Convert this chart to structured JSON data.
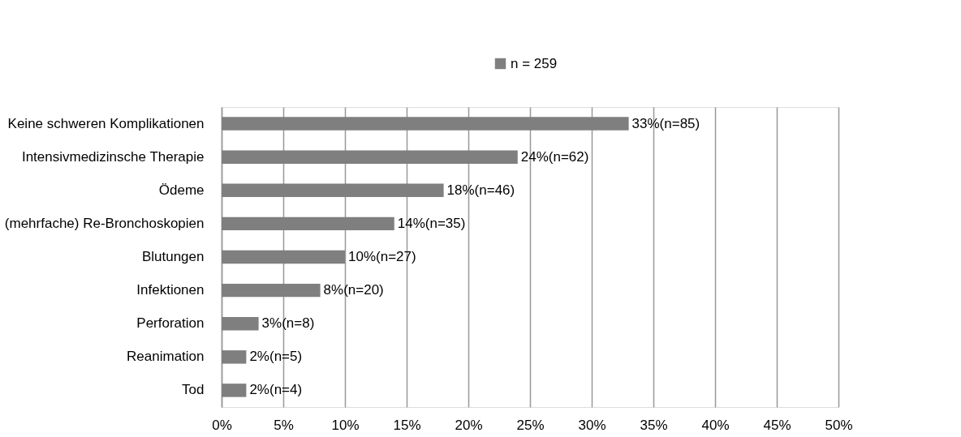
{
  "chart_data": {
    "type": "bar",
    "orientation": "horizontal",
    "categories": [
      "Keine schweren Komplikationen",
      "Intensivmedizinsche Therapie",
      "Ödeme",
      "(mehrfache) Re-Bronchoskopien",
      "Blutungen",
      "Infektionen",
      "Perforation",
      "Reanimation",
      "Tod"
    ],
    "series": [
      {
        "name": "n = 259",
        "color": "#7f7f7f",
        "values": [
          33,
          24,
          18,
          14,
          10,
          8,
          3,
          2,
          2
        ],
        "value_labels": [
          "33%(n=85)",
          "24%(n=62)",
          "18%(n=46)",
          "14%(n=35)",
          "10%(n=27)",
          "8%(n=20)",
          "3%(n=8)",
          "2%(n=5)",
          "2%(n=4)"
        ]
      }
    ],
    "xlim": [
      0,
      50
    ],
    "xticks": [
      {
        "value": 0,
        "label": "0%"
      },
      {
        "value": 5,
        "label": "5%"
      },
      {
        "value": 10,
        "label": "10%"
      },
      {
        "value": 15,
        "label": "15%"
      },
      {
        "value": 20,
        "label": "20%"
      },
      {
        "value": 25,
        "label": "25%"
      },
      {
        "value": 30,
        "label": "30%"
      },
      {
        "value": 35,
        "label": "35%"
      },
      {
        "value": 40,
        "label": "40%"
      },
      {
        "value": 45,
        "label": "45%"
      },
      {
        "value": 50,
        "label": "50%"
      }
    ],
    "grid": "x",
    "legend": "top"
  }
}
